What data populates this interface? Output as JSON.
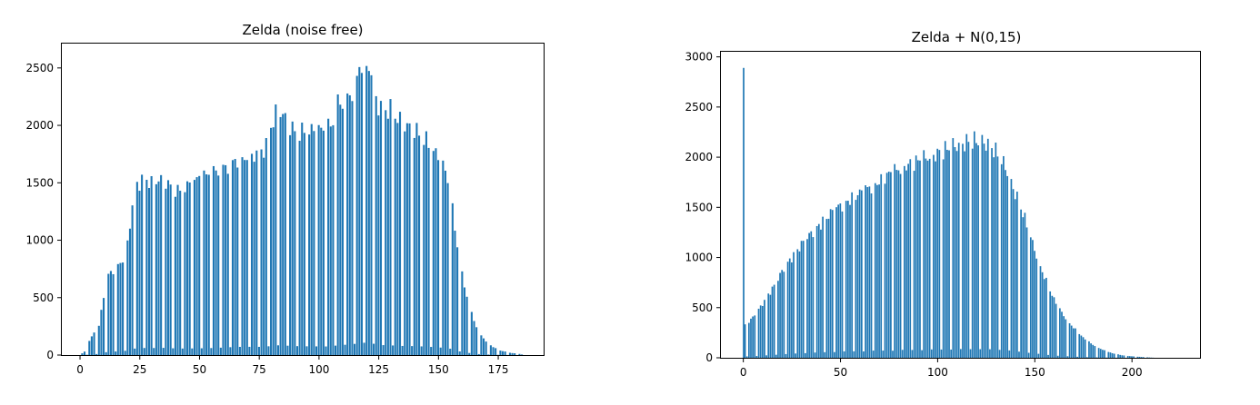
{
  "chart_data": [
    {
      "type": "bar",
      "title": "Zelda (noise free)",
      "xlabel": "",
      "ylabel": "",
      "xlim": [
        -8,
        194
      ],
      "ylim": [
        0,
        2720
      ],
      "xticks": [
        0,
        25,
        50,
        75,
        100,
        125,
        150,
        175
      ],
      "yticks": [
        0,
        500,
        1000,
        1500,
        2000,
        2500
      ],
      "color": "#1f77b4",
      "grid": false,
      "profile": [
        [
          0,
          0
        ],
        [
          2,
          30
        ],
        [
          4,
          120
        ],
        [
          6,
          200
        ],
        [
          8,
          250
        ],
        [
          10,
          520
        ],
        [
          12,
          700
        ],
        [
          15,
          760
        ],
        [
          18,
          830
        ],
        [
          20,
          980
        ],
        [
          22,
          1300
        ],
        [
          24,
          1480
        ],
        [
          26,
          1530
        ],
        [
          30,
          1510
        ],
        [
          35,
          1540
        ],
        [
          38,
          1470
        ],
        [
          42,
          1420
        ],
        [
          45,
          1470
        ],
        [
          50,
          1540
        ],
        [
          55,
          1580
        ],
        [
          60,
          1620
        ],
        [
          65,
          1700
        ],
        [
          70,
          1730
        ],
        [
          75,
          1760
        ],
        [
          78,
          1820
        ],
        [
          80,
          1990
        ],
        [
          82,
          2100
        ],
        [
          84,
          2130
        ],
        [
          86,
          2060
        ],
        [
          88,
          2000
        ],
        [
          90,
          1940
        ],
        [
          95,
          1940
        ],
        [
          100,
          1960
        ],
        [
          103,
          1950
        ],
        [
          106,
          2020
        ],
        [
          108,
          2180
        ],
        [
          112,
          2230
        ],
        [
          115,
          2340
        ],
        [
          117,
          2520
        ],
        [
          119,
          2560
        ],
        [
          121,
          2520
        ],
        [
          123,
          2380
        ],
        [
          125,
          2160
        ],
        [
          130,
          2130
        ],
        [
          135,
          2010
        ],
        [
          140,
          1960
        ],
        [
          145,
          1860
        ],
        [
          150,
          1720
        ],
        [
          153,
          1600
        ],
        [
          155,
          1420
        ],
        [
          157,
          1100
        ],
        [
          159,
          800
        ],
        [
          161,
          600
        ],
        [
          163,
          440
        ],
        [
          165,
          300
        ],
        [
          167,
          200
        ],
        [
          170,
          120
        ],
        [
          173,
          70
        ],
        [
          176,
          40
        ],
        [
          180,
          20
        ],
        [
          184,
          10
        ],
        [
          186,
          0
        ]
      ]
    },
    {
      "type": "bar",
      "title": "Zelda + N(0,15)",
      "xlabel": "",
      "ylabel": "",
      "xlim": [
        -12,
        235
      ],
      "ylim": [
        0,
        3060
      ],
      "xticks": [
        0,
        50,
        100,
        150,
        200
      ],
      "yticks": [
        0,
        500,
        1000,
        1500,
        2000,
        2500,
        3000
      ],
      "color": "#1f77b4",
      "grid": false,
      "spike": {
        "x": 0,
        "value": 2890
      },
      "profile": [
        [
          1,
          330
        ],
        [
          4,
          380
        ],
        [
          8,
          480
        ],
        [
          12,
          600
        ],
        [
          16,
          720
        ],
        [
          20,
          860
        ],
        [
          25,
          1000
        ],
        [
          30,
          1130
        ],
        [
          35,
          1240
        ],
        [
          40,
          1340
        ],
        [
          45,
          1440
        ],
        [
          50,
          1520
        ],
        [
          55,
          1580
        ],
        [
          60,
          1640
        ],
        [
          65,
          1700
        ],
        [
          70,
          1760
        ],
        [
          75,
          1830
        ],
        [
          80,
          1880
        ],
        [
          85,
          1930
        ],
        [
          90,
          1960
        ],
        [
          95,
          2000
        ],
        [
          100,
          2040
        ],
        [
          105,
          2080
        ],
        [
          110,
          2120
        ],
        [
          115,
          2150
        ],
        [
          120,
          2160
        ],
        [
          124,
          2150
        ],
        [
          128,
          2100
        ],
        [
          132,
          2000
        ],
        [
          136,
          1860
        ],
        [
          140,
          1640
        ],
        [
          144,
          1440
        ],
        [
          148,
          1200
        ],
        [
          152,
          960
        ],
        [
          156,
          760
        ],
        [
          160,
          580
        ],
        [
          165,
          420
        ],
        [
          170,
          300
        ],
        [
          175,
          200
        ],
        [
          180,
          130
        ],
        [
          185,
          80
        ],
        [
          190,
          45
        ],
        [
          195,
          25
        ],
        [
          200,
          15
        ],
        [
          205,
          8
        ],
        [
          210,
          2
        ],
        [
          212,
          0
        ]
      ]
    }
  ]
}
